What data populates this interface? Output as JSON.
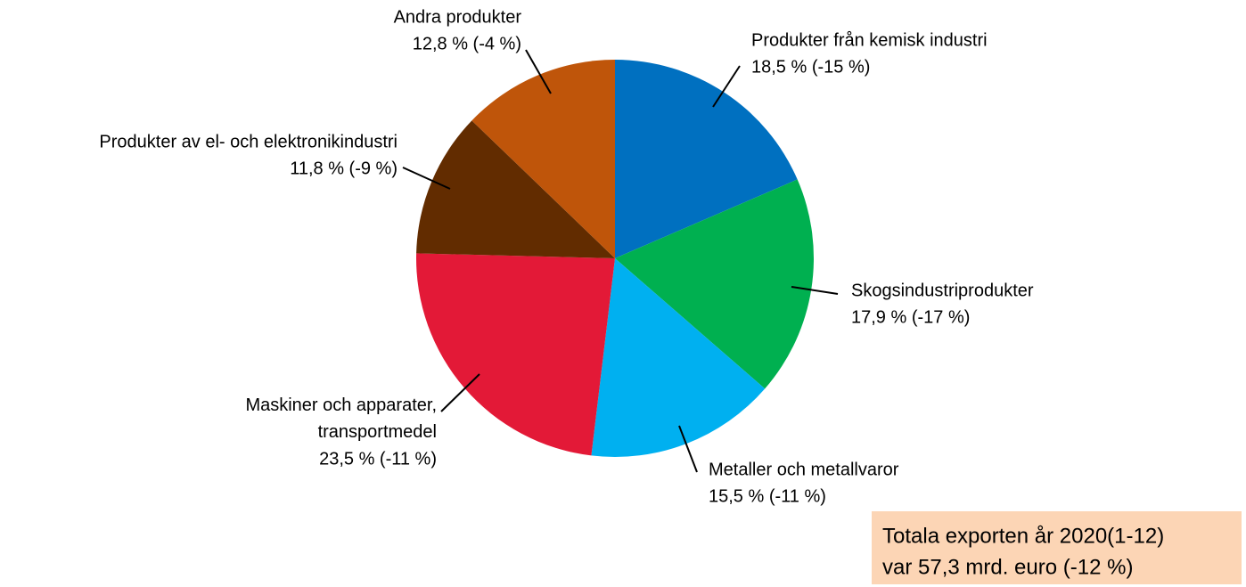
{
  "chart_data": {
    "type": "pie",
    "categories": [
      "Produkter från kemisk industri",
      "Skogsindustriprodukter",
      "Metaller och metallvaror",
      "Maskiner och apparater, transportmedel",
      "Produkter av el- och elektronikindustri",
      "Andra produkter"
    ],
    "values": [
      18.5,
      17.9,
      15.5,
      23.5,
      11.8,
      12.8
    ],
    "value_labels": [
      "18,5 % (-15 %)",
      "17,9 % (-17 %)",
      "15,5 % (-11 %)",
      "23,5 % (-11 %)",
      "11,8 % (-9 %)",
      "12,8 % (-4 %)"
    ],
    "colors": [
      "#0070c0",
      "#00b050",
      "#00b0f0",
      "#e31937",
      "#622c00",
      "#bf550a"
    ],
    "annotation": [
      "Totala exporten år 2020(1-12)",
      "var 57,3 mrd. euro (-12 %)"
    ]
  }
}
